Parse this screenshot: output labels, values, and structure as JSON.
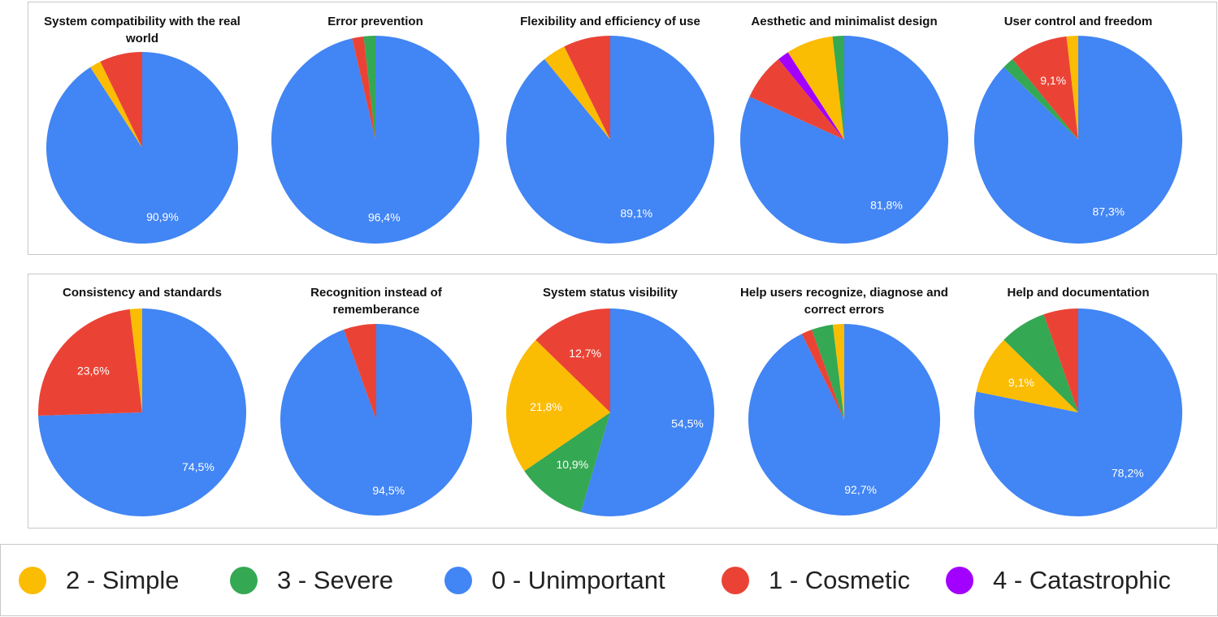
{
  "colors": {
    "unimportant": "#4285f4",
    "cosmetic": "#ea4335",
    "simple": "#fbbc04",
    "severe": "#34a853",
    "catastrophic": "#a200ff"
  },
  "legend": [
    {
      "key": "simple",
      "label": "2 - Simple"
    },
    {
      "key": "severe",
      "label": "3 - Severe"
    },
    {
      "key": "unimportant",
      "label": "0 - Unimportant"
    },
    {
      "key": "cosmetic",
      "label": "1 - Cosmetic"
    },
    {
      "key": "catastrophic",
      "label": "4 - Catastrophic"
    }
  ],
  "chart_data": [
    {
      "type": "pie",
      "title": "System compatibility with the real world",
      "slices": [
        {
          "label": "0 - Unimportant",
          "key": "unimportant",
          "value": 90.9,
          "text": "90,9%"
        },
        {
          "label": "2 - Simple",
          "key": "simple",
          "value": 1.9,
          "text": ""
        },
        {
          "label": "1 - Cosmetic",
          "key": "cosmetic",
          "value": 7.2,
          "text": ""
        }
      ]
    },
    {
      "type": "pie",
      "title": "Error prevention",
      "slices": [
        {
          "label": "0 - Unimportant",
          "key": "unimportant",
          "value": 96.4,
          "text": "96,4%"
        },
        {
          "label": "1 - Cosmetic",
          "key": "cosmetic",
          "value": 1.8,
          "text": ""
        },
        {
          "label": "3 - Severe",
          "key": "severe",
          "value": 1.8,
          "text": ""
        }
      ]
    },
    {
      "type": "pie",
      "title": "Flexibility and efficiency of use",
      "slices": [
        {
          "label": "0 - Unimportant",
          "key": "unimportant",
          "value": 89.1,
          "text": "89,1%"
        },
        {
          "label": "2 - Simple",
          "key": "simple",
          "value": 3.6,
          "text": ""
        },
        {
          "label": "1 - Cosmetic",
          "key": "cosmetic",
          "value": 7.3,
          "text": ""
        }
      ]
    },
    {
      "type": "pie",
      "title": "Aesthetic and minimalist design",
      "slices": [
        {
          "label": "0 - Unimportant",
          "key": "unimportant",
          "value": 81.8,
          "text": "81,8%"
        },
        {
          "label": "1 - Cosmetic",
          "key": "cosmetic",
          "value": 7.3,
          "text": ""
        },
        {
          "label": "4 - Catastrophic",
          "key": "catastrophic",
          "value": 1.8,
          "text": ""
        },
        {
          "label": "2 - Simple",
          "key": "simple",
          "value": 7.3,
          "text": ""
        },
        {
          "label": "3 - Severe",
          "key": "severe",
          "value": 1.8,
          "text": ""
        }
      ]
    },
    {
      "type": "pie",
      "title": "User control and freedom",
      "slices": [
        {
          "label": "0 - Unimportant",
          "key": "unimportant",
          "value": 87.3,
          "text": "87,3%"
        },
        {
          "label": "3 - Severe",
          "key": "severe",
          "value": 1.8,
          "text": ""
        },
        {
          "label": "1 - Cosmetic",
          "key": "cosmetic",
          "value": 9.1,
          "text": "9,1%"
        },
        {
          "label": "2 - Simple",
          "key": "simple",
          "value": 1.8,
          "text": ""
        }
      ]
    },
    {
      "type": "pie",
      "title": "Consistency and standards",
      "slices": [
        {
          "label": "0 - Unimportant",
          "key": "unimportant",
          "value": 74.5,
          "text": "74,5%"
        },
        {
          "label": "1 - Cosmetic",
          "key": "cosmetic",
          "value": 23.6,
          "text": "23,6%"
        },
        {
          "label": "2 - Simple",
          "key": "simple",
          "value": 1.9,
          "text": ""
        }
      ]
    },
    {
      "type": "pie",
      "title": "Recognition instead of rememberance",
      "slices": [
        {
          "label": "0 - Unimportant",
          "key": "unimportant",
          "value": 94.5,
          "text": "94,5%"
        },
        {
          "label": "1 - Cosmetic",
          "key": "cosmetic",
          "value": 5.5,
          "text": ""
        }
      ]
    },
    {
      "type": "pie",
      "title": "System status visibility",
      "slices": [
        {
          "label": "0 - Unimportant",
          "key": "unimportant",
          "value": 54.5,
          "text": "54,5%"
        },
        {
          "label": "3 - Severe",
          "key": "severe",
          "value": 10.9,
          "text": "10,9%"
        },
        {
          "label": "2 - Simple",
          "key": "simple",
          "value": 21.8,
          "text": "21,8%"
        },
        {
          "label": "1 - Cosmetic",
          "key": "cosmetic",
          "value": 12.7,
          "text": "12,7%"
        }
      ]
    },
    {
      "type": "pie",
      "title": "Help users recognize, diagnose and correct errors",
      "slices": [
        {
          "label": "0 - Unimportant",
          "key": "unimportant",
          "value": 92.7,
          "text": "92,7%"
        },
        {
          "label": "1 - Cosmetic",
          "key": "cosmetic",
          "value": 1.8,
          "text": ""
        },
        {
          "label": "3 - Severe",
          "key": "severe",
          "value": 3.6,
          "text": ""
        },
        {
          "label": "2 - Simple",
          "key": "simple",
          "value": 1.9,
          "text": ""
        }
      ]
    },
    {
      "type": "pie",
      "title": "Help and documentation",
      "slices": [
        {
          "label": "0 - Unimportant",
          "key": "unimportant",
          "value": 78.2,
          "text": "78,2%"
        },
        {
          "label": "2 - Simple",
          "key": "simple",
          "value": 9.1,
          "text": "9,1%"
        },
        {
          "label": "3 - Severe",
          "key": "severe",
          "value": 7.3,
          "text": ""
        },
        {
          "label": "1 - Cosmetic",
          "key": "cosmetic",
          "value": 5.4,
          "text": ""
        }
      ]
    }
  ]
}
